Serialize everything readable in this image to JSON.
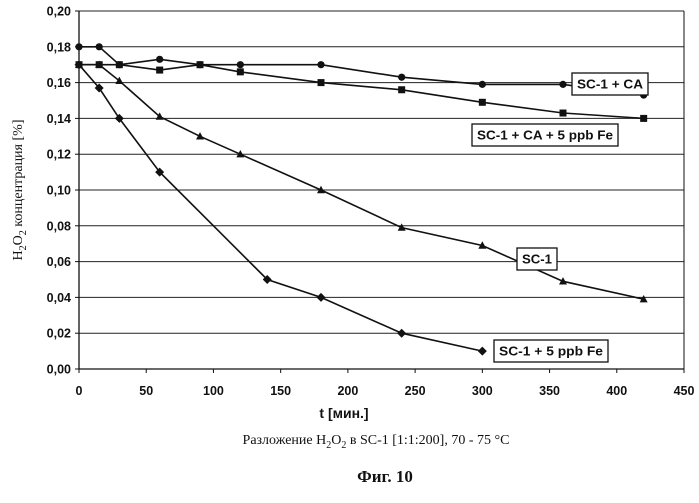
{
  "chart_data": {
    "type": "line",
    "xlabel": "t [мин.]",
    "ylabel_main": "H",
    "ylabel_sub1": "2",
    "ylabel_mid": "O",
    "ylabel_sub2": "2",
    "ylabel_rest": " концентрация [%]",
    "caption_pre": "Разложение H",
    "caption_sub1": "2",
    "caption_mid": "O",
    "caption_sub2": "2",
    "caption_post": " в SC-1 [1:1:200], 70 - 75 °C",
    "figure_label": "Фиг. 10",
    "xlim": [
      0,
      450
    ],
    "ylim": [
      0,
      0.2
    ],
    "x_ticks": [
      "0",
      "50",
      "100",
      "150",
      "200",
      "250",
      "300",
      "350",
      "400",
      "450"
    ],
    "x_tick_values": [
      0,
      50,
      100,
      150,
      200,
      250,
      300,
      350,
      400,
      450
    ],
    "y_ticks": [
      "0,00",
      "0,02",
      "0,04",
      "0,06",
      "0,08",
      "0,10",
      "0,12",
      "0,14",
      "0,16",
      "0,18",
      "0,20"
    ],
    "y_tick_values": [
      0,
      0.02,
      0.04,
      0.06,
      0.08,
      0.1,
      0.12,
      0.14,
      0.16,
      0.18,
      0.2
    ],
    "grid": "horizontal",
    "series": [
      {
        "name": "SC-1 + CA",
        "marker": "circle",
        "x": [
          0,
          15,
          30,
          60,
          90,
          120,
          180,
          240,
          300,
          360,
          420
        ],
        "y": [
          0.18,
          0.18,
          0.17,
          0.173,
          0.17,
          0.17,
          0.17,
          0.163,
          0.159,
          0.159,
          0.153
        ]
      },
      {
        "name": "SC-1 + CA + 5 ppb Fe",
        "marker": "square",
        "x": [
          0,
          15,
          30,
          60,
          90,
          120,
          180,
          240,
          300,
          360,
          420
        ],
        "y": [
          0.17,
          0.17,
          0.17,
          0.167,
          0.17,
          0.166,
          0.16,
          0.156,
          0.149,
          0.143,
          0.14
        ]
      },
      {
        "name": "SC-1",
        "marker": "triangle",
        "x": [
          0,
          15,
          30,
          60,
          90,
          120,
          180,
          240,
          300,
          360,
          420
        ],
        "y": [
          0.17,
          0.17,
          0.161,
          0.141,
          0.13,
          0.12,
          0.1,
          0.079,
          0.069,
          0.049,
          0.039
        ]
      },
      {
        "name": "SC-1 + 5 ppb Fe",
        "marker": "diamond",
        "x": [
          0,
          15,
          30,
          60,
          140,
          180,
          240,
          300
        ],
        "y": [
          0.17,
          0.157,
          0.14,
          0.11,
          0.05,
          0.04,
          0.02,
          0.01
        ]
      }
    ]
  }
}
